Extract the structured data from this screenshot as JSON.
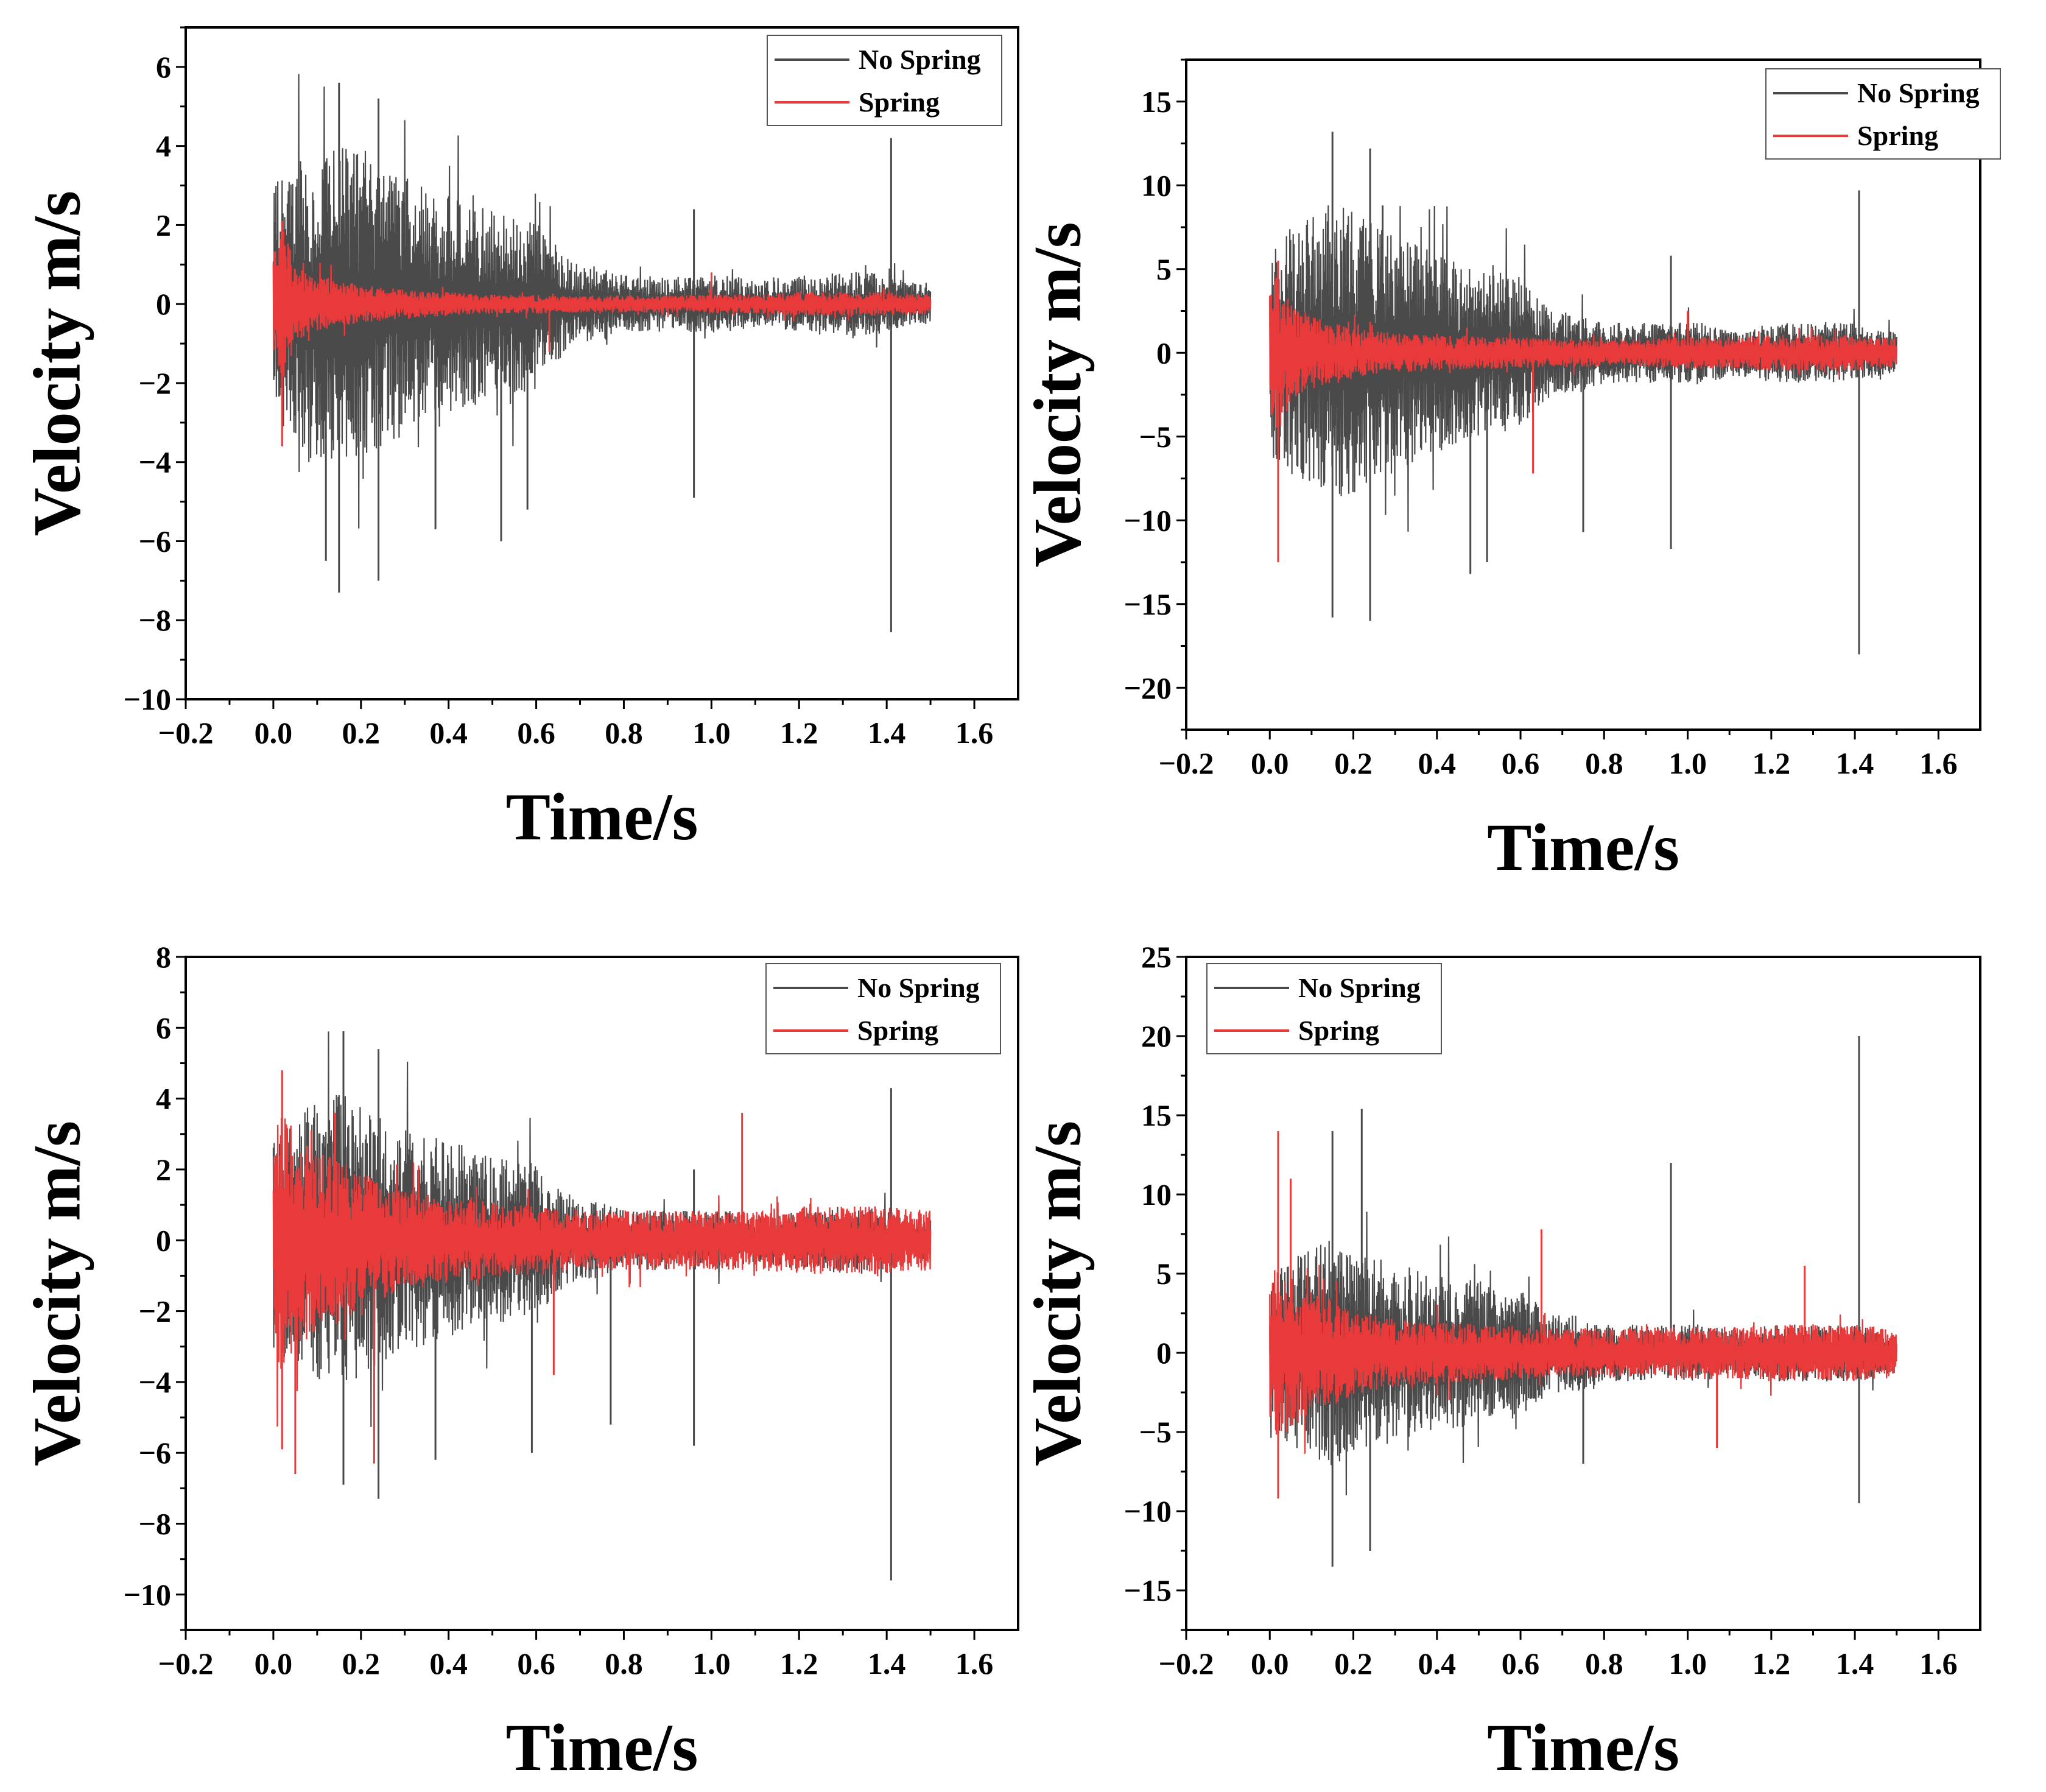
{
  "colors": {
    "no_spring": "#4a4a4a",
    "spring": "#e83a3a",
    "axis": "#000000"
  },
  "chart_data": [
    {
      "type": "line",
      "title": "",
      "xlabel": "Time/s",
      "ylabel": "Velocity m/s",
      "xlim": [
        -0.2,
        1.7
      ],
      "ylim": [
        -10,
        7
      ],
      "xticks": [
        -0.2,
        0.0,
        0.2,
        0.4,
        0.6,
        0.8,
        1.0,
        1.2,
        1.4,
        1.6
      ],
      "xtick_labels": [
        "−0.2",
        "0.0",
        "0.2",
        "0.4",
        "0.6",
        "0.8",
        "1.0",
        "1.2",
        "1.4",
        "1.6"
      ],
      "yticks": [
        -10,
        -8,
        -6,
        -4,
        -2,
        0,
        2,
        4,
        6
      ],
      "ytick_labels": [
        "−10",
        "−8",
        "−6",
        "−4",
        "−2",
        "0",
        "2",
        "4",
        "6"
      ],
      "legend": {
        "position": "top-right",
        "entries": [
          "No Spring",
          "Spring"
        ]
      },
      "series": [
        {
          "name": "No Spring",
          "envelope_t": [
            0.0,
            0.05,
            0.1,
            0.15,
            0.2,
            0.25,
            0.3,
            0.35,
            0.4,
            0.45,
            0.5,
            0.55,
            0.6,
            0.65,
            0.7,
            0.75,
            0.8,
            0.85,
            0.9,
            0.95,
            1.0,
            1.05,
            1.1,
            1.15,
            1.2,
            1.25,
            1.3,
            1.35,
            1.4,
            1.45,
            1.5
          ],
          "envelope_amp": [
            2.5,
            3.0,
            3.2,
            3.5,
            3.2,
            3.0,
            2.8,
            2.5,
            2.3,
            2.2,
            2.0,
            1.9,
            1.8,
            1.2,
            0.8,
            0.8,
            0.6,
            0.6,
            0.6,
            0.6,
            0.6,
            0.6,
            0.5,
            0.5,
            0.6,
            0.6,
            0.7,
            0.7,
            0.6,
            0.5,
            0.4
          ],
          "spikes": [
            [
              0.15,
              5.6
            ],
            [
              0.24,
              5.2
            ],
            [
              0.15,
              -7.3
            ],
            [
              0.24,
              -7.0
            ],
            [
              0.12,
              -6.5
            ],
            [
              0.37,
              -5.7
            ],
            [
              0.52,
              -6.0
            ],
            [
              0.58,
              -5.2
            ],
            [
              0.96,
              2.4
            ],
            [
              0.96,
              -4.9
            ],
            [
              1.41,
              4.2
            ],
            [
              1.41,
              -8.3
            ]
          ]
        },
        {
          "name": "Spring",
          "envelope_t": [
            0.0,
            0.02,
            0.05,
            0.1,
            0.15,
            0.2,
            0.3,
            0.4,
            0.5,
            0.6,
            0.7,
            0.8,
            0.9,
            1.0,
            1.1,
            1.2,
            1.3,
            1.4,
            1.5
          ],
          "envelope_amp": [
            1.3,
            1.8,
            0.8,
            0.6,
            0.5,
            0.4,
            0.3,
            0.25,
            0.2,
            0.2,
            0.18,
            0.18,
            0.18,
            0.2,
            0.2,
            0.25,
            0.25,
            0.25,
            0.2
          ],
          "spikes": [
            [
              0.02,
              2.1
            ],
            [
              0.02,
              -3.6
            ],
            [
              0.63,
              -1.2
            ],
            [
              1.0,
              0.8
            ]
          ]
        }
      ]
    },
    {
      "type": "line",
      "title": "",
      "xlabel": "Time/s",
      "ylabel": "Velocity m/s",
      "xlim": [
        -0.2,
        1.7
      ],
      "ylim": [
        -22.5,
        17.5
      ],
      "xticks": [
        -0.2,
        0.0,
        0.2,
        0.4,
        0.6,
        0.8,
        1.0,
        1.2,
        1.4,
        1.6
      ],
      "xtick_labels": [
        "−0.2",
        "0.0",
        "0.2",
        "0.4",
        "0.6",
        "0.8",
        "1.0",
        "1.2",
        "1.4",
        "1.6"
      ],
      "yticks": [
        -20,
        -15,
        -10,
        -5,
        0,
        5,
        10,
        15
      ],
      "ytick_labels": [
        "−20",
        "−15",
        "−10",
        "−5",
        "0",
        "5",
        "10",
        "15"
      ],
      "legend": {
        "position": "top-right",
        "entries": [
          "No Spring",
          "Spring"
        ]
      },
      "series": [
        {
          "name": "No Spring",
          "envelope_t": [
            0.0,
            0.05,
            0.1,
            0.15,
            0.2,
            0.25,
            0.3,
            0.35,
            0.4,
            0.45,
            0.5,
            0.55,
            0.6,
            0.65,
            0.7,
            0.75,
            0.8,
            0.85,
            0.9,
            0.95,
            1.0,
            1.05,
            1.1,
            1.15,
            1.2,
            1.25,
            1.3,
            1.35,
            1.4,
            1.45,
            1.5
          ],
          "envelope_amp": [
            5.0,
            6.5,
            7.0,
            7.5,
            7.0,
            6.5,
            6.0,
            5.5,
            5.0,
            4.5,
            4.3,
            4.0,
            3.8,
            2.5,
            2.0,
            2.0,
            1.5,
            1.5,
            1.5,
            1.5,
            1.5,
            1.5,
            1.2,
            1.2,
            1.5,
            1.5,
            1.5,
            1.5,
            1.5,
            1.2,
            1.0
          ],
          "spikes": [
            [
              0.15,
              13.2
            ],
            [
              0.24,
              12.2
            ],
            [
              0.15,
              -15.8
            ],
            [
              0.24,
              -16.0
            ],
            [
              0.27,
              8.8
            ],
            [
              0.48,
              -13.2
            ],
            [
              0.52,
              -12.5
            ],
            [
              0.75,
              -10.7
            ],
            [
              0.96,
              5.8
            ],
            [
              0.96,
              -11.7
            ],
            [
              1.41,
              9.7
            ],
            [
              1.41,
              -18.0
            ]
          ]
        },
        {
          "name": "Spring",
          "envelope_t": [
            0.0,
            0.02,
            0.05,
            0.1,
            0.15,
            0.2,
            0.3,
            0.4,
            0.5,
            0.6,
            0.7,
            0.8,
            0.9,
            1.0,
            1.1,
            1.2,
            1.3,
            1.4,
            1.5
          ],
          "envelope_amp": [
            3.0,
            4.0,
            2.5,
            1.8,
            1.5,
            1.2,
            1.0,
            0.9,
            0.8,
            0.8,
            0.7,
            0.7,
            0.7,
            0.8,
            0.8,
            0.9,
            0.9,
            0.9,
            0.7
          ],
          "spikes": [
            [
              0.02,
              5.5
            ],
            [
              0.02,
              -12.5
            ],
            [
              0.63,
              -7.2
            ],
            [
              1.0,
              2.5
            ]
          ]
        }
      ]
    },
    {
      "type": "line",
      "title": "",
      "xlabel": "Time/s",
      "ylabel": "Velocity m/s",
      "xlim": [
        -0.2,
        1.7
      ],
      "ylim": [
        -11,
        8
      ],
      "xticks": [
        -0.2,
        0.0,
        0.2,
        0.4,
        0.6,
        0.8,
        1.0,
        1.2,
        1.4,
        1.6
      ],
      "xtick_labels": [
        "−0.2",
        "0.0",
        "0.2",
        "0.4",
        "0.6",
        "0.8",
        "1.0",
        "1.2",
        "1.4",
        "1.6"
      ],
      "yticks": [
        -10,
        -8,
        -6,
        -4,
        -2,
        0,
        2,
        4,
        6,
        8
      ],
      "ytick_labels": [
        "−10",
        "−8",
        "−6",
        "−4",
        "−2",
        "0",
        "2",
        "4",
        "6",
        "8"
      ],
      "legend": {
        "position": "top-right",
        "entries": [
          "No Spring",
          "Spring"
        ]
      },
      "series": [
        {
          "name": "No Spring",
          "envelope_t": [
            0.0,
            0.05,
            0.1,
            0.15,
            0.2,
            0.25,
            0.3,
            0.35,
            0.4,
            0.45,
            0.5,
            0.55,
            0.6,
            0.65,
            0.7,
            0.75,
            0.8,
            0.85,
            0.9,
            0.95,
            1.0,
            1.05,
            1.1,
            1.15,
            1.2,
            1.25,
            1.3,
            1.35,
            1.4,
            1.45,
            1.5
          ],
          "envelope_amp": [
            2.6,
            3.0,
            3.3,
            3.5,
            3.2,
            3.0,
            2.8,
            2.5,
            2.3,
            2.2,
            2.0,
            1.9,
            1.8,
            1.3,
            0.9,
            0.9,
            0.7,
            0.7,
            0.7,
            0.7,
            0.7,
            0.7,
            0.6,
            0.6,
            0.7,
            0.7,
            0.8,
            0.8,
            0.7,
            0.6,
            0.5
          ],
          "spikes": [
            [
              0.16,
              5.9
            ],
            [
              0.24,
              5.4
            ],
            [
              0.16,
              -6.9
            ],
            [
              0.24,
              -7.3
            ],
            [
              0.37,
              -6.2
            ],
            [
              0.59,
              -6.0
            ],
            [
              0.77,
              -5.2
            ],
            [
              0.96,
              2.0
            ],
            [
              0.96,
              -5.8
            ],
            [
              1.41,
              4.3
            ],
            [
              1.41,
              -9.6
            ]
          ]
        },
        {
          "name": "Spring",
          "envelope_t": [
            0.0,
            0.02,
            0.05,
            0.1,
            0.15,
            0.2,
            0.3,
            0.4,
            0.5,
            0.6,
            0.7,
            0.8,
            0.9,
            1.0,
            1.1,
            1.2,
            1.3,
            1.4,
            1.5
          ],
          "envelope_amp": [
            2.5,
            3.2,
            2.5,
            2.2,
            2.0,
            1.6,
            1.2,
            1.0,
            0.9,
            0.8,
            0.7,
            0.7,
            0.7,
            0.7,
            0.7,
            0.8,
            0.8,
            0.8,
            0.7
          ],
          "spikes": [
            [
              0.02,
              4.8
            ],
            [
              0.02,
              -5.9
            ],
            [
              0.05,
              -6.6
            ],
            [
              0.14,
              3.6
            ],
            [
              0.23,
              -6.3
            ],
            [
              1.07,
              3.6
            ],
            [
              0.64,
              -3.8
            ]
          ]
        }
      ]
    },
    {
      "type": "line",
      "title": "",
      "xlabel": "Time/s",
      "ylabel": "Velocity m/s",
      "xlim": [
        -0.2,
        1.7
      ],
      "ylim": [
        -17.5,
        25
      ],
      "xticks": [
        -0.2,
        0.0,
        0.2,
        0.4,
        0.6,
        0.8,
        1.0,
        1.2,
        1.4,
        1.6
      ],
      "xtick_labels": [
        "−0.2",
        "0.0",
        "0.2",
        "0.4",
        "0.6",
        "0.8",
        "1.0",
        "1.2",
        "1.4",
        "1.6"
      ],
      "yticks": [
        -15,
        -10,
        -5,
        0,
        5,
        10,
        15,
        20,
        25
      ],
      "ytick_labels": [
        "−15",
        "−10",
        "−5",
        "0",
        "5",
        "10",
        "15",
        "20",
        "25"
      ],
      "legend": {
        "position": "top-left",
        "entries": [
          "No Spring",
          "Spring"
        ]
      },
      "series": [
        {
          "name": "No Spring",
          "envelope_t": [
            0.0,
            0.05,
            0.1,
            0.15,
            0.2,
            0.25,
            0.3,
            0.35,
            0.4,
            0.45,
            0.5,
            0.55,
            0.6,
            0.65,
            0.7,
            0.75,
            0.8,
            0.85,
            0.9,
            0.95,
            1.0,
            1.05,
            1.1,
            1.15,
            1.2,
            1.25,
            1.3,
            1.35,
            1.4,
            1.45,
            1.5
          ],
          "envelope_amp": [
            4.0,
            5.0,
            5.5,
            6.0,
            5.5,
            5.0,
            4.8,
            4.5,
            4.2,
            4.0,
            3.8,
            3.5,
            3.3,
            2.5,
            2.0,
            2.0,
            1.5,
            1.5,
            1.5,
            1.5,
            1.5,
            1.5,
            1.2,
            1.2,
            1.5,
            1.5,
            1.5,
            1.5,
            1.5,
            1.2,
            1.0
          ],
          "spikes": [
            [
              0.15,
              14.0
            ],
            [
              0.22,
              15.4
            ],
            [
              0.15,
              -13.5
            ],
            [
              0.24,
              -12.5
            ],
            [
              0.96,
              12.0
            ],
            [
              1.41,
              20.0
            ],
            [
              1.41,
              -9.5
            ],
            [
              0.75,
              -7.0
            ]
          ]
        },
        {
          "name": "Spring",
          "envelope_t": [
            0.0,
            0.02,
            0.05,
            0.1,
            0.15,
            0.2,
            0.3,
            0.4,
            0.5,
            0.6,
            0.7,
            0.8,
            0.9,
            1.0,
            1.1,
            1.2,
            1.3,
            1.4,
            1.5
          ],
          "envelope_amp": [
            4.0,
            5.0,
            4.0,
            3.2,
            2.8,
            2.2,
            1.8,
            1.6,
            1.5,
            1.4,
            1.3,
            1.3,
            1.3,
            1.4,
            1.4,
            1.5,
            1.5,
            1.5,
            1.3
          ],
          "spikes": [
            [
              0.02,
              14.0
            ],
            [
              0.02,
              -9.2
            ],
            [
              0.05,
              11.0
            ],
            [
              0.65,
              7.8
            ],
            [
              1.07,
              -6.0
            ],
            [
              1.28,
              5.5
            ]
          ]
        }
      ]
    }
  ]
}
